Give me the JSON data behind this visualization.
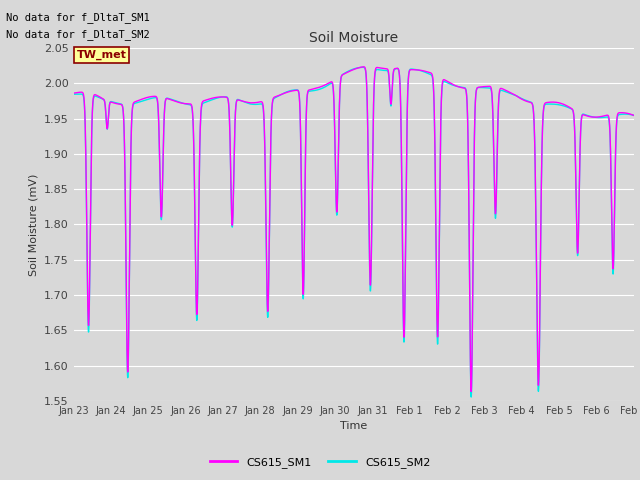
{
  "title": "Soil Moisture",
  "ylabel": "Soil Moisture (mV)",
  "xlabel": "Time",
  "ylim": [
    1.55,
    2.05
  ],
  "yticks": [
    1.55,
    1.6,
    1.65,
    1.7,
    1.75,
    1.8,
    1.85,
    1.9,
    1.95,
    2.0,
    2.05
  ],
  "xtick_labels": [
    "Jan 23",
    "Jan 24",
    "Jan 25",
    "Jan 26",
    "Jan 27",
    "Jan 28",
    "Jan 29",
    "Jan 30",
    "Jan 31",
    "Feb 1",
    "Feb 2",
    "Feb 3",
    "Feb 4",
    "Feb 5",
    "Feb 6",
    "Feb 7"
  ],
  "no_data_text1": "No data for f_DltaT_SM1",
  "no_data_text2": "No data for f_DltaT_SM2",
  "tw_met_label": "TW_met",
  "legend_labels": [
    "CS615_SM1",
    "CS615_SM2"
  ],
  "sm1_color": "#ff00ff",
  "sm2_color": "#00e8e8",
  "fig_bg_color": "#d8d8d8",
  "plot_bg_color": "#d8d8d8",
  "grid_color": "#ffffff",
  "line_width": 1.0,
  "dip_times": [
    0.4,
    0.9,
    1.45,
    2.35,
    3.3,
    4.25,
    5.2,
    6.15,
    7.05,
    7.95,
    8.5,
    8.85,
    9.75,
    10.65,
    11.3,
    12.45,
    13.5,
    14.45
  ],
  "dip_depths": [
    0.33,
    0.04,
    0.38,
    0.17,
    0.3,
    0.18,
    0.3,
    0.29,
    0.19,
    0.31,
    0.05,
    0.38,
    0.37,
    0.43,
    0.18,
    0.4,
    0.2,
    0.22
  ],
  "dip_widths": [
    0.045,
    0.03,
    0.045,
    0.04,
    0.045,
    0.04,
    0.045,
    0.04,
    0.04,
    0.045,
    0.03,
    0.045,
    0.045,
    0.045,
    0.04,
    0.05,
    0.04,
    0.04
  ],
  "base_values": [
    1.985,
    1.975,
    1.975,
    1.975,
    1.975,
    1.975,
    1.975,
    1.98,
    1.99,
    2.01,
    2.02,
    2.025,
    2.01,
    2.0,
    1.99,
    1.985,
    1.97,
    1.96,
    1.955,
    1.95
  ],
  "tw_box_color": "#ffff99",
  "tw_text_color": "#8b0000",
  "tw_edge_color": "#8b0000"
}
